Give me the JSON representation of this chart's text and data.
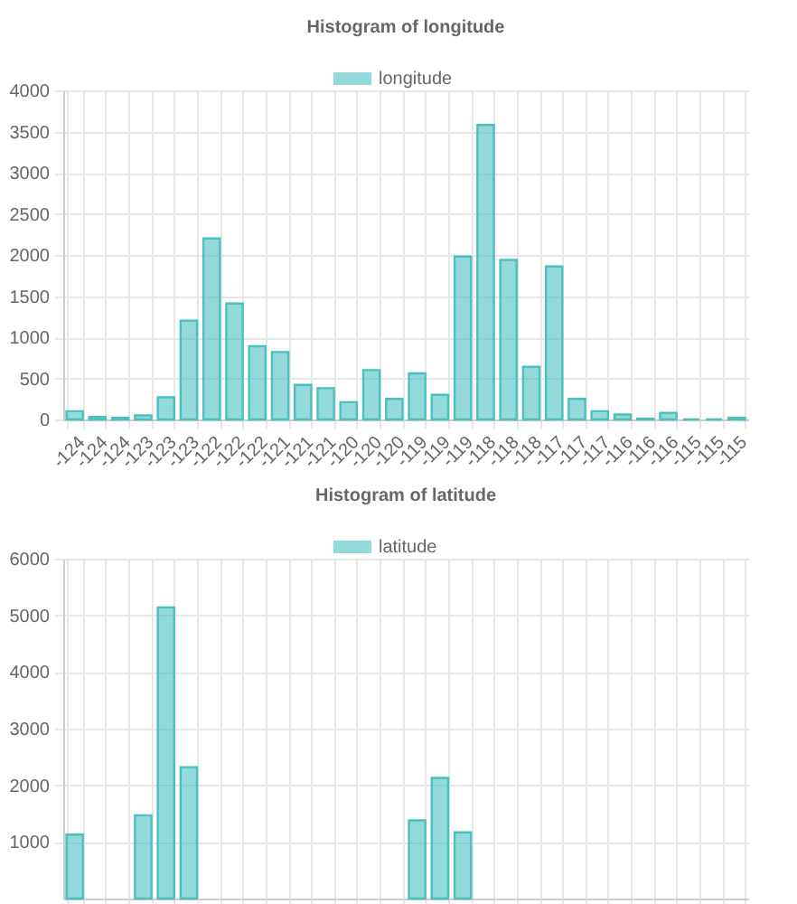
{
  "chart_data": [
    {
      "type": "bar",
      "title": "Histogram of longitude",
      "categories": [
        "-124",
        "-124",
        "-124",
        "-123",
        "-123",
        "-123",
        "-122",
        "-122",
        "-122",
        "-121",
        "-121",
        "-121",
        "-120",
        "-120",
        "-120",
        "-119",
        "-119",
        "-119",
        "-118",
        "-118",
        "-118",
        "-117",
        "-117",
        "-117",
        "-116",
        "-116",
        "-116",
        "-115",
        "-115",
        "-115"
      ],
      "series": [
        {
          "name": "longitude",
          "color": "#4bc0c0",
          "values": [
            100,
            30,
            20,
            50,
            270,
            1200,
            2200,
            1410,
            890,
            820,
            420,
            380,
            210,
            600,
            250,
            560,
            300,
            1980,
            3580,
            1940,
            640,
            1860,
            250,
            100,
            60,
            10,
            80,
            0,
            0,
            20
          ]
        }
      ],
      "ylim": [
        0,
        4000
      ],
      "yticks": [
        0,
        500,
        1000,
        1500,
        2000,
        2500,
        3000,
        3500,
        4000
      ],
      "grid": true,
      "legend": "top"
    },
    {
      "type": "bar",
      "title": "Histogram of latitude",
      "categories": [
        null,
        null,
        null,
        null,
        null,
        null,
        null,
        null,
        null,
        null,
        null,
        null,
        null,
        null,
        null,
        null,
        null,
        null,
        null,
        null,
        null,
        null,
        null,
        null,
        null,
        null,
        null,
        null,
        null,
        null
      ],
      "series": [
        {
          "name": "latitude",
          "color": "#4bc0c0",
          "values": [
            1130,
            null,
            null,
            1470,
            5140,
            2320,
            null,
            null,
            null,
            null,
            null,
            null,
            null,
            null,
            null,
            1380,
            2130,
            1170,
            null,
            null,
            null,
            null,
            null,
            null,
            null,
            null,
            null,
            null,
            null,
            null
          ]
        }
      ],
      "ylim": [
        0,
        6000
      ],
      "yticks": [
        1000,
        2000,
        3000,
        4000,
        5000,
        6000
      ],
      "grid": true,
      "legend": "top",
      "tick_labels": "y"
    }
  ]
}
